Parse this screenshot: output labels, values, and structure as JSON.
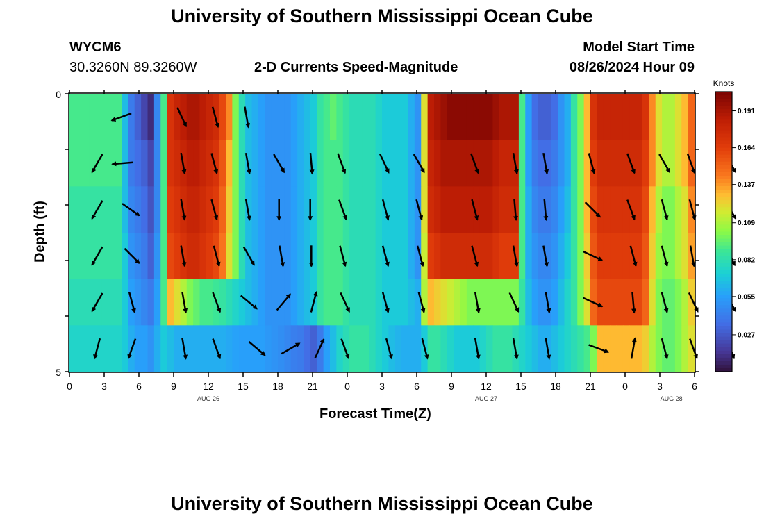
{
  "header": {
    "title_top": "University of Southern Mississippi Ocean Cube",
    "station_id": "WYCM6",
    "station_coords": "30.3260N  89.3260W",
    "plot_title": "2-D Currents Speed-Magnitude",
    "model_start_label": "Model Start Time",
    "model_start_value": "08/26/2024 Hour 09",
    "title_bottom": "University of Southern Mississippi Ocean Cube"
  },
  "chart_data": {
    "type": "heatmap",
    "title": "2-D Currents Speed-Magnitude",
    "xlabel": "Forecast Time(Z)",
    "ylabel": "Depth (ft)",
    "x_tick_labels": [
      "0",
      "3",
      "6",
      "9",
      "12",
      "15",
      "18",
      "21",
      "0",
      "3",
      "6",
      "9",
      "12",
      "15",
      "18",
      "21",
      "0",
      "3",
      "6"
    ],
    "x_date_labels": [
      "AUG 26",
      "AUG 27",
      "AUG 28"
    ],
    "y_tick_labels": [
      "0",
      "5"
    ],
    "y_range": [
      0,
      5
    ],
    "colorbar": {
      "title": "Knots",
      "ticks": [
        "0.191",
        "0.164",
        "0.137",
        "0.109",
        "0.082",
        "0.055",
        "0.027"
      ],
      "range": [
        0.0,
        0.205
      ]
    },
    "speed_rows_knots": [
      [
        0.09,
        0.09,
        0.09,
        0.09,
        0.09,
        0.09,
        0.09,
        0.09,
        0.065,
        0.04,
        0.03,
        0.02,
        0.01,
        0.045,
        0.09,
        0.17,
        0.18,
        0.185,
        0.19,
        0.19,
        0.185,
        0.18,
        0.175,
        0.16,
        0.14,
        0.1,
        0.08,
        0.065,
        0.06,
        0.055,
        0.05,
        0.05,
        0.05,
        0.05,
        0.055,
        0.06,
        0.065,
        0.07,
        0.085,
        0.09,
        0.095,
        0.09,
        0.085,
        0.08,
        0.08,
        0.08,
        0.08,
        0.075,
        0.07,
        0.07,
        0.07,
        0.07,
        0.06,
        0.05,
        0.12,
        0.185,
        0.19,
        0.195,
        0.2,
        0.2,
        0.2,
        0.2,
        0.2,
        0.2,
        0.2,
        0.195,
        0.19,
        0.19,
        0.19,
        0.09,
        0.055,
        0.035,
        0.03,
        0.03,
        0.035,
        0.05,
        0.06,
        0.085,
        0.1,
        0.13,
        0.17,
        0.18,
        0.18,
        0.18,
        0.18,
        0.18,
        0.18,
        0.18,
        0.17,
        0.14,
        0.12,
        0.11,
        0.11,
        0.12,
        0.13,
        0.15
      ],
      [
        0.09,
        0.09,
        0.09,
        0.09,
        0.09,
        0.09,
        0.09,
        0.09,
        0.065,
        0.04,
        0.035,
        0.03,
        0.02,
        0.045,
        0.09,
        0.17,
        0.175,
        0.18,
        0.185,
        0.185,
        0.18,
        0.175,
        0.17,
        0.155,
        0.13,
        0.1,
        0.08,
        0.065,
        0.06,
        0.055,
        0.05,
        0.05,
        0.05,
        0.05,
        0.055,
        0.06,
        0.065,
        0.07,
        0.085,
        0.09,
        0.09,
        0.09,
        0.085,
        0.08,
        0.08,
        0.08,
        0.08,
        0.075,
        0.07,
        0.07,
        0.07,
        0.07,
        0.06,
        0.05,
        0.12,
        0.18,
        0.185,
        0.19,
        0.19,
        0.19,
        0.19,
        0.19,
        0.19,
        0.19,
        0.19,
        0.185,
        0.18,
        0.18,
        0.18,
        0.09,
        0.055,
        0.04,
        0.035,
        0.035,
        0.04,
        0.05,
        0.06,
        0.085,
        0.1,
        0.13,
        0.165,
        0.175,
        0.175,
        0.175,
        0.175,
        0.175,
        0.175,
        0.175,
        0.165,
        0.14,
        0.12,
        0.11,
        0.11,
        0.12,
        0.13,
        0.15
      ],
      [
        0.085,
        0.085,
        0.085,
        0.085,
        0.085,
        0.085,
        0.085,
        0.085,
        0.065,
        0.045,
        0.04,
        0.035,
        0.025,
        0.045,
        0.09,
        0.165,
        0.17,
        0.175,
        0.18,
        0.18,
        0.175,
        0.17,
        0.165,
        0.15,
        0.125,
        0.1,
        0.08,
        0.065,
        0.06,
        0.055,
        0.05,
        0.05,
        0.05,
        0.05,
        0.055,
        0.06,
        0.065,
        0.07,
        0.085,
        0.09,
        0.09,
        0.09,
        0.085,
        0.08,
        0.08,
        0.08,
        0.08,
        0.075,
        0.07,
        0.07,
        0.07,
        0.07,
        0.06,
        0.05,
        0.12,
        0.175,
        0.18,
        0.185,
        0.185,
        0.185,
        0.185,
        0.185,
        0.185,
        0.185,
        0.185,
        0.18,
        0.175,
        0.175,
        0.175,
        0.09,
        0.06,
        0.045,
        0.04,
        0.04,
        0.045,
        0.055,
        0.065,
        0.085,
        0.1,
        0.13,
        0.16,
        0.17,
        0.17,
        0.17,
        0.17,
        0.17,
        0.17,
        0.17,
        0.16,
        0.13,
        0.11,
        0.1,
        0.1,
        0.11,
        0.12,
        0.14
      ],
      [
        0.085,
        0.085,
        0.085,
        0.085,
        0.085,
        0.085,
        0.085,
        0.085,
        0.07,
        0.05,
        0.045,
        0.04,
        0.03,
        0.05,
        0.09,
        0.16,
        0.165,
        0.17,
        0.175,
        0.175,
        0.17,
        0.165,
        0.16,
        0.145,
        0.12,
        0.1,
        0.08,
        0.065,
        0.06,
        0.055,
        0.05,
        0.05,
        0.05,
        0.05,
        0.055,
        0.06,
        0.065,
        0.07,
        0.085,
        0.09,
        0.09,
        0.09,
        0.085,
        0.08,
        0.08,
        0.08,
        0.08,
        0.075,
        0.07,
        0.07,
        0.07,
        0.07,
        0.06,
        0.05,
        0.115,
        0.165,
        0.17,
        0.175,
        0.175,
        0.175,
        0.175,
        0.175,
        0.175,
        0.175,
        0.175,
        0.17,
        0.165,
        0.165,
        0.165,
        0.09,
        0.06,
        0.05,
        0.045,
        0.045,
        0.05,
        0.06,
        0.07,
        0.085,
        0.1,
        0.125,
        0.155,
        0.165,
        0.165,
        0.165,
        0.165,
        0.165,
        0.165,
        0.165,
        0.155,
        0.125,
        0.105,
        0.1,
        0.1,
        0.11,
        0.12,
        0.135
      ],
      [
        0.08,
        0.08,
        0.08,
        0.08,
        0.08,
        0.08,
        0.08,
        0.08,
        0.07,
        0.055,
        0.05,
        0.045,
        0.04,
        0.055,
        0.09,
        0.13,
        0.12,
        0.11,
        0.1,
        0.095,
        0.09,
        0.09,
        0.088,
        0.085,
        0.08,
        0.075,
        0.07,
        0.065,
        0.06,
        0.055,
        0.05,
        0.05,
        0.05,
        0.05,
        0.055,
        0.06,
        0.065,
        0.07,
        0.085,
        0.09,
        0.09,
        0.09,
        0.085,
        0.08,
        0.08,
        0.08,
        0.08,
        0.075,
        0.07,
        0.07,
        0.07,
        0.07,
        0.065,
        0.06,
        0.11,
        0.13,
        0.125,
        0.12,
        0.115,
        0.11,
        0.105,
        0.1,
        0.1,
        0.1,
        0.1,
        0.1,
        0.1,
        0.1,
        0.1,
        0.085,
        0.065,
        0.055,
        0.05,
        0.05,
        0.055,
        0.065,
        0.075,
        0.085,
        0.1,
        0.12,
        0.15,
        0.16,
        0.16,
        0.16,
        0.16,
        0.16,
        0.16,
        0.16,
        0.15,
        0.12,
        0.1,
        0.095,
        0.095,
        0.1,
        0.11,
        0.125
      ],
      [
        0.075,
        0.075,
        0.075,
        0.075,
        0.075,
        0.075,
        0.075,
        0.075,
        0.07,
        0.06,
        0.055,
        0.055,
        0.05,
        0.06,
        0.07,
        0.065,
        0.06,
        0.06,
        0.06,
        0.06,
        0.06,
        0.06,
        0.06,
        0.06,
        0.058,
        0.056,
        0.055,
        0.055,
        0.055,
        0.055,
        0.052,
        0.05,
        0.048,
        0.045,
        0.042,
        0.04,
        0.035,
        0.03,
        0.04,
        0.055,
        0.065,
        0.075,
        0.08,
        0.085,
        0.085,
        0.085,
        0.08,
        0.075,
        0.07,
        0.065,
        0.062,
        0.06,
        0.06,
        0.06,
        0.07,
        0.085,
        0.085,
        0.08,
        0.075,
        0.07,
        0.07,
        0.07,
        0.07,
        0.075,
        0.08,
        0.085,
        0.085,
        0.085,
        0.08,
        0.075,
        0.07,
        0.065,
        0.06,
        0.06,
        0.065,
        0.07,
        0.075,
        0.08,
        0.085,
        0.09,
        0.1,
        0.13,
        0.13,
        0.13,
        0.13,
        0.13,
        0.13,
        0.13,
        0.125,
        0.11,
        0.1,
        0.095,
        0.095,
        0.1,
        0.11,
        0.12
      ]
    ],
    "arrows_by_row": [
      [
        [
          4.5,
          -160
        ],
        [
          9.7,
          -65
        ],
        [
          12.6,
          -75
        ],
        [
          15.3,
          -80
        ]
      ],
      [
        [
          2.4,
          -120
        ],
        [
          4.6,
          185
        ],
        [
          9.8,
          -80
        ],
        [
          12.5,
          -75
        ],
        [
          15.4,
          -80
        ],
        [
          18.1,
          -60
        ],
        [
          20.9,
          -85
        ],
        [
          23.5,
          -70
        ],
        [
          27.2,
          -65
        ],
        [
          30.2,
          -60
        ],
        [
          35,
          -70
        ],
        [
          38.5,
          -80
        ],
        [
          41.1,
          -80
        ],
        [
          45.1,
          -75
        ],
        [
          48.5,
          -70
        ],
        [
          51.4,
          -60
        ],
        [
          53.7,
          -70
        ],
        [
          57.1,
          -60
        ]
      ],
      [
        [
          2.4,
          -120
        ],
        [
          5.3,
          -35
        ],
        [
          9.8,
          -80
        ],
        [
          12.5,
          -75
        ],
        [
          15.4,
          -80
        ],
        [
          18.1,
          -90
        ],
        [
          20.8,
          -90
        ],
        [
          23.6,
          -70
        ],
        [
          27.3,
          -75
        ],
        [
          30.2,
          -75
        ],
        [
          35,
          -75
        ],
        [
          38.5,
          -85
        ],
        [
          41.1,
          -85
        ],
        [
          45.2,
          -45
        ],
        [
          48.5,
          -70
        ],
        [
          51.4,
          -75
        ],
        [
          53.8,
          -75
        ],
        [
          57.1,
          -60
        ]
      ],
      [
        [
          2.4,
          -120
        ],
        [
          5.4,
          -45
        ],
        [
          9.8,
          -80
        ],
        [
          12.7,
          -75
        ],
        [
          15.5,
          -60
        ],
        [
          18.3,
          -80
        ],
        [
          20.9,
          -90
        ],
        [
          23.6,
          -75
        ],
        [
          27.3,
          -75
        ],
        [
          30.3,
          -75
        ],
        [
          35,
          -75
        ],
        [
          38.5,
          -80
        ],
        [
          41.1,
          -80
        ],
        [
          45.2,
          -25
        ],
        [
          48.7,
          -75
        ],
        [
          51.4,
          -75
        ],
        [
          53.8,
          -80
        ],
        [
          57.1,
          -65
        ]
      ],
      [
        [
          2.4,
          -120
        ],
        [
          5.4,
          -75
        ],
        [
          9.9,
          -80
        ],
        [
          12.7,
          -70
        ],
        [
          15.5,
          -40
        ],
        [
          18.5,
          50
        ],
        [
          21.1,
          75
        ],
        [
          23.8,
          -65
        ],
        [
          27.3,
          -75
        ],
        [
          30.4,
          -75
        ],
        [
          35.2,
          -80
        ],
        [
          38.4,
          -65
        ],
        [
          41.3,
          -80
        ],
        [
          45.2,
          -25
        ],
        [
          48.7,
          -85
        ],
        [
          51.4,
          -75
        ],
        [
          53.9,
          -65
        ],
        [
          57.1,
          -60
        ]
      ],
      [
        [
          2.4,
          -105
        ],
        [
          5.4,
          -110
        ],
        [
          9.9,
          -80
        ],
        [
          12.7,
          -70
        ],
        [
          16.2,
          -40
        ],
        [
          19.1,
          30
        ],
        [
          21.6,
          65
        ],
        [
          23.8,
          -70
        ],
        [
          27.6,
          -75
        ],
        [
          30.7,
          -75
        ],
        [
          35.2,
          -80
        ],
        [
          38.5,
          -80
        ],
        [
          41.3,
          -80
        ],
        [
          45.7,
          -20
        ],
        [
          48.7,
          80
        ],
        [
          51.4,
          -75
        ],
        [
          53.9,
          -70
        ],
        [
          57.1,
          -70
        ]
      ]
    ]
  }
}
